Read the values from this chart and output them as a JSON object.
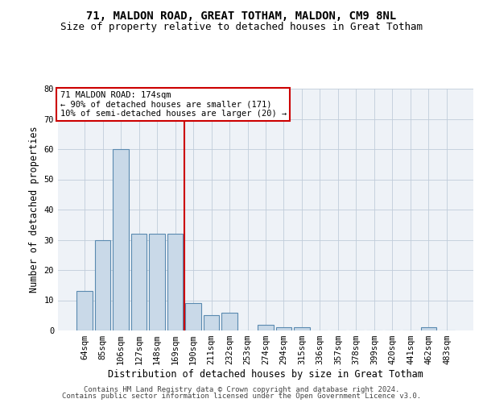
{
  "title1": "71, MALDON ROAD, GREAT TOTHAM, MALDON, CM9 8NL",
  "title2": "Size of property relative to detached houses in Great Totham",
  "xlabel": "Distribution of detached houses by size in Great Totham",
  "ylabel": "Number of detached properties",
  "categories": [
    "64sqm",
    "85sqm",
    "106sqm",
    "127sqm",
    "148sqm",
    "169sqm",
    "190sqm",
    "211sqm",
    "232sqm",
    "253sqm",
    "274sqm",
    "294sqm",
    "315sqm",
    "336sqm",
    "357sqm",
    "378sqm",
    "399sqm",
    "420sqm",
    "441sqm",
    "462sqm",
    "483sqm"
  ],
  "values": [
    13,
    30,
    60,
    32,
    32,
    32,
    9,
    5,
    6,
    0,
    2,
    1,
    1,
    0,
    0,
    0,
    0,
    0,
    0,
    1,
    0
  ],
  "bar_color": "#c9d9e8",
  "bar_edge_color": "#5a8ab0",
  "vline_x": 5.5,
  "vline_color": "#cc0000",
  "annotation_text": "71 MALDON ROAD: 174sqm\n← 90% of detached houses are smaller (171)\n10% of semi-detached houses are larger (20) →",
  "annotation_box_color": "#ffffff",
  "annotation_box_edge": "#cc0000",
  "ylim": [
    0,
    80
  ],
  "yticks": [
    0,
    10,
    20,
    30,
    40,
    50,
    60,
    70,
    80
  ],
  "footer1": "Contains HM Land Registry data © Crown copyright and database right 2024.",
  "footer2": "Contains public sector information licensed under the Open Government Licence v3.0.",
  "bg_color": "#ffffff",
  "plot_bg_color": "#eef2f7",
  "title1_fontsize": 10,
  "title2_fontsize": 9,
  "xlabel_fontsize": 8.5,
  "ylabel_fontsize": 8.5,
  "tick_fontsize": 7.5,
  "footer_fontsize": 6.5,
  "annotation_fontsize": 7.5
}
